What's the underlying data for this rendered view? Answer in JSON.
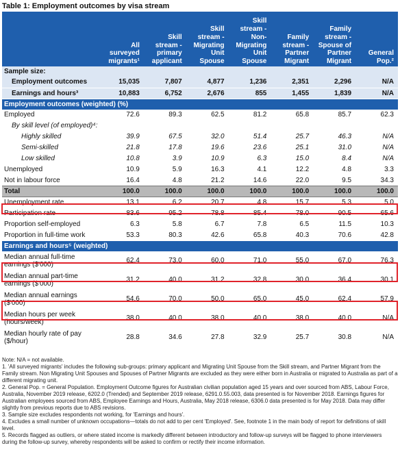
{
  "title": "Table 1: Employment outcomes by visa stream",
  "columns": [
    "",
    "All surveyed migrants¹",
    "Skill stream - primary applicant",
    "Skill stream - Migrating Unit Spouse",
    "Skill stream - Non-Migrating Unit Spouse",
    "Family stream - Partner Migrant",
    "Family stream - Spouse of Partner Migrant",
    "General Pop.²"
  ],
  "rows": [
    {
      "label": "Sample size:",
      "type": "sub-head",
      "values": []
    },
    {
      "label": "Employment outcomes",
      "type": "sub-bold",
      "values": [
        "15,035",
        "7,807",
        "4,877",
        "1,236",
        "2,351",
        "2,296",
        "N/A"
      ]
    },
    {
      "label": "Earnings and hours³",
      "type": "sub-bold",
      "values": [
        "10,883",
        "6,752",
        "2,676",
        "855",
        "1,455",
        "1,839",
        "N/A"
      ]
    },
    {
      "label": "Employment outcomes (weighted) (%)",
      "type": "section",
      "values": []
    },
    {
      "label": "Employed",
      "type": "data",
      "values": [
        "72.6",
        "89.3",
        "62.5",
        "81.2",
        "65.8",
        "85.7",
        "62.3"
      ]
    },
    {
      "label": "By skill level (of employed)⁴:",
      "type": "indent-head",
      "values": []
    },
    {
      "label": "Highly skilled",
      "type": "italic",
      "values": [
        "39.9",
        "67.5",
        "32.0",
        "51.4",
        "25.7",
        "46.3",
        "N/A"
      ]
    },
    {
      "label": "Semi-skilled",
      "type": "italic",
      "values": [
        "21.8",
        "17.8",
        "19.6",
        "23.6",
        "25.1",
        "31.0",
        "N/A"
      ]
    },
    {
      "label": "Low skilled",
      "type": "italic",
      "values": [
        "10.8",
        "3.9",
        "10.9",
        "6.3",
        "15.0",
        "8.4",
        "N/A"
      ]
    },
    {
      "label": "Unemployed",
      "type": "data",
      "values": [
        "10.9",
        "5.9",
        "16.3",
        "4.1",
        "12.2",
        "4.8",
        "3.3"
      ]
    },
    {
      "label": "Not in labour force",
      "type": "data",
      "values": [
        "16.4",
        "4.8",
        "21.2",
        "14.6",
        "22.0",
        "9.5",
        "34.3"
      ]
    },
    {
      "label": "Total",
      "type": "total",
      "values": [
        "100.0",
        "100.0",
        "100.0",
        "100.0",
        "100.0",
        "100.0",
        "100.0"
      ]
    },
    {
      "label": "Unemployment rate",
      "type": "data",
      "values": [
        "13.1",
        "6.2",
        "20.7",
        "4.8",
        "15.7",
        "5.3",
        "5.0"
      ]
    },
    {
      "label": "Participation rate",
      "type": "data",
      "values": [
        "83.6",
        "95.2",
        "78.8",
        "85.4",
        "78.0",
        "90.5",
        "65.6"
      ]
    },
    {
      "label": "Proportion self-employed",
      "type": "data",
      "values": [
        "6.3",
        "5.8",
        "6.7",
        "7.8",
        "6.5",
        "11.5",
        "10.3"
      ]
    },
    {
      "label": "Proportion in full-time work",
      "type": "data",
      "values": [
        "53.3",
        "80.3",
        "42.6",
        "65.8",
        "40.3",
        "70.6",
        "42.8"
      ]
    },
    {
      "label": "Earnings and hours⁵ (weighted)",
      "type": "section",
      "values": []
    },
    {
      "label": "Median annual full-time earnings ($'000)",
      "type": "data2",
      "values": [
        "62.4",
        "73.0",
        "60.0",
        "71.0",
        "55.0",
        "67.0",
        "76.3"
      ]
    },
    {
      "label": "Median annual part-time earnings ($'000)",
      "type": "data2",
      "values": [
        "31.2",
        "40.0",
        "31.2",
        "32.8",
        "30.0",
        "36.4",
        "30.1"
      ]
    },
    {
      "label": "Median annual earnings ($'000)",
      "type": "data2",
      "values": [
        "54.6",
        "70.0",
        "50.0",
        "65.0",
        "45.0",
        "62.4",
        "57.9"
      ]
    },
    {
      "label": "Median hours per week (hours/week)",
      "type": "data2",
      "values": [
        "38.0",
        "40.0",
        "38.0",
        "40.0",
        "38.0",
        "40.0",
        "N/A"
      ]
    },
    {
      "label": "Median hourly rate of pay ($/hour)",
      "type": "data2",
      "values": [
        "28.8",
        "34.6",
        "27.8",
        "32.9",
        "25.7",
        "30.8",
        "N/A"
      ]
    }
  ],
  "notes": [
    "Note: N/A = not available.",
    "1. 'All surveyed migrants' includes the following sub-groups: primary applicant and Migrating Unit Spouse from the Skill stream, and Partner Migrant from the Family stream. Non Migrating Unit Spouses and Spouses of Partner Migrants are excluded as they were either born in Australia or migrated to Australia as part of a different migrating unit.",
    "2. General Pop. = General Population. Employment Outcome figures for Australian civilian population aged 15 years and over sourced from ABS, Labour Force, Australia, November 2019 release, 6202.0 (Trended) and September 2019 release, 6291.0.55.003, data presented is for November 2018. Earnings figures for Australian employees sourced from ABS, Employee Earnings and Hours, Australia, May 2018 release, 6306.0 data presented is for May 2018. Data may differ slightly from previous reports due to ABS revisions.",
    "3. Sample size excludes respondents not working, for 'Earnings and hours'.",
    "4. Excludes a small number of unknown occupations—totals do not add to per cent 'Employed'. See, footnote 1 in the main body of report for definitions of skill level.",
    "5. Records flagged as outliers, or where stated income is markedly different between introductory and follow-up surveys will be flagged to phone interviewers during the follow-up survey, whereby respondents will be asked to confirm or rectify their income information."
  ]
}
